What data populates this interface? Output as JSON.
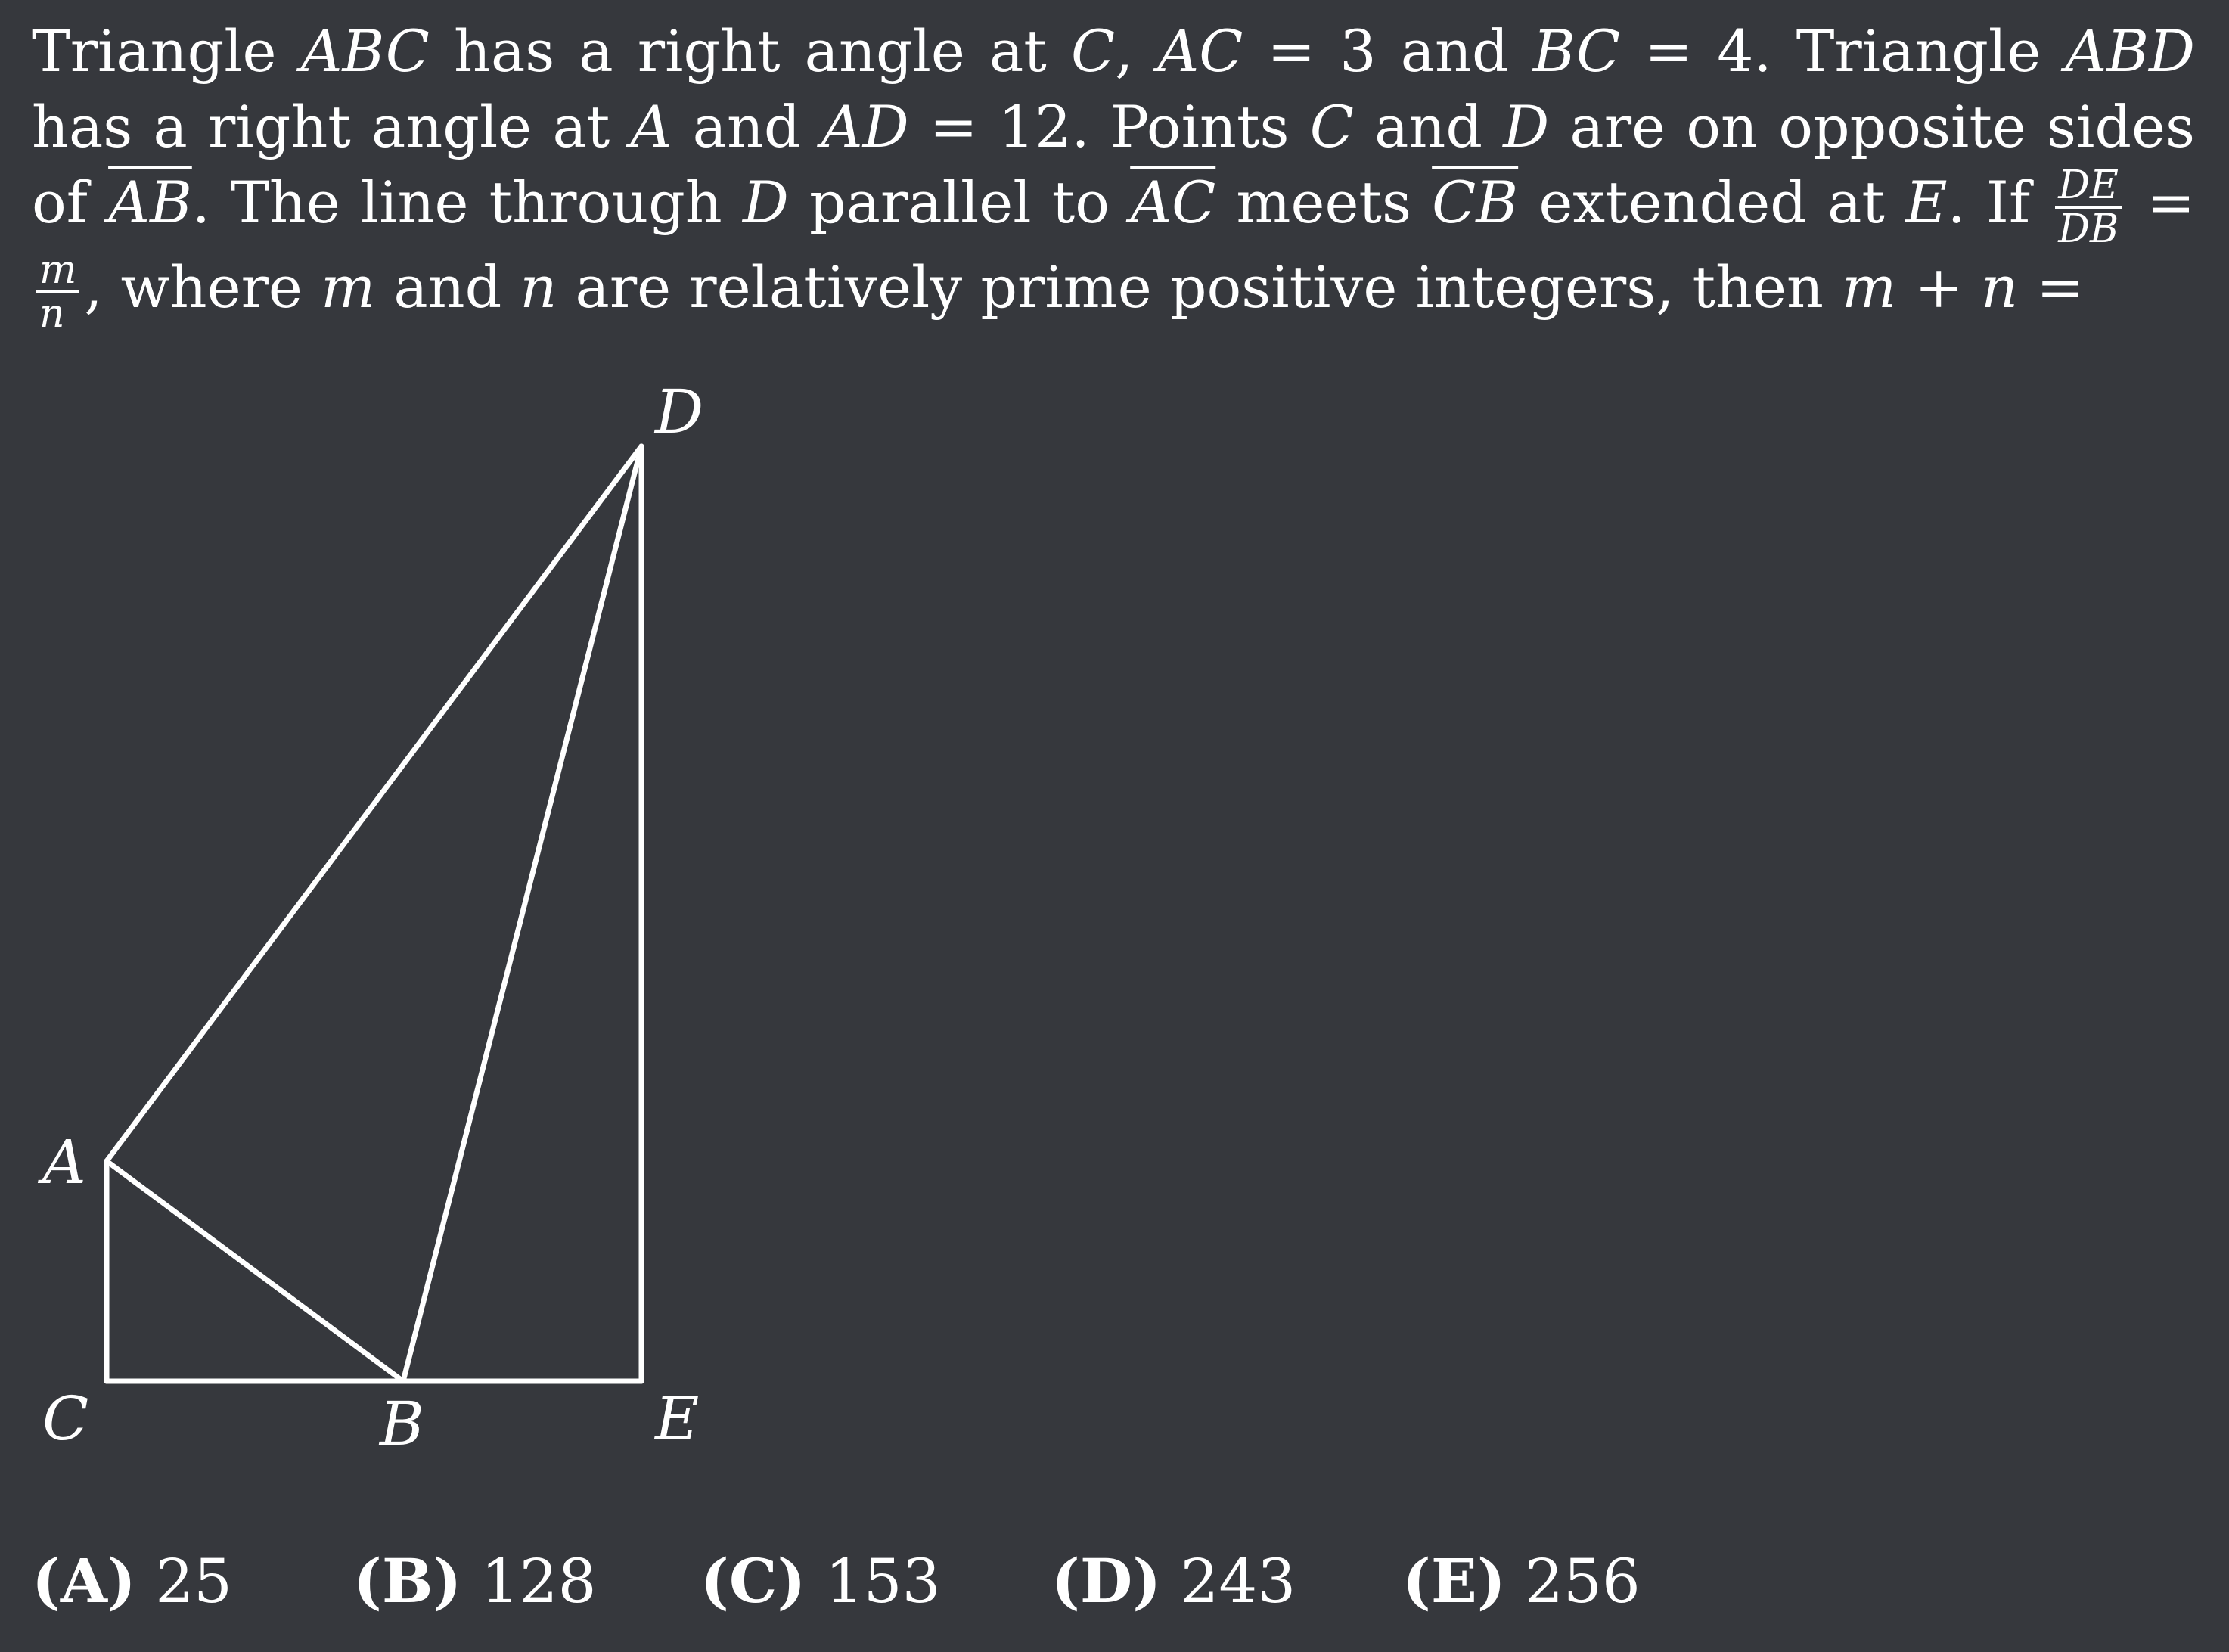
{
  "problem": {
    "t1": "Triangle ",
    "v_abc": "ABC",
    "t2": " has a right angle at ",
    "v_c": "C",
    "t3": ", ",
    "v_ac": "AC",
    "t4": " = 3 and ",
    "v_bc": "BC",
    "t5": " = 4. Triangle ",
    "v_abd": "ABD",
    "t6": " has a right angle at ",
    "v_a": "A",
    "t7": " and ",
    "v_ad": "AD",
    "t8": " = 12. Points ",
    "v_c2": "C",
    "t9": " and ",
    "v_d": "D",
    "t10": " are on opposite sides of ",
    "v_ab_ov": "AB",
    "t11": ". The line through ",
    "v_d2": "D",
    "t12": " parallel to ",
    "v_ac_ov": "AC",
    "t13": " meets ",
    "v_cb_ov": "CB",
    "t14": " extended at ",
    "v_e": "E",
    "t15": ". If ",
    "frac1_num": "DE",
    "frac1_den": "DB",
    "t16": " = ",
    "frac2_num": "m",
    "frac2_den": "n",
    "t17": ", where ",
    "v_m": "m",
    "t18": " and ",
    "v_n": "n",
    "t19": " are relatively prime positive integers, then ",
    "v_mn": "m + n",
    "t20": " ="
  },
  "figure": {
    "labels": {
      "A": "A",
      "B": "B",
      "C": "C",
      "D": "D",
      "E": "E"
    },
    "line_color": "#ffffff",
    "background_color": "#36383d"
  },
  "choices": [
    {
      "letter": "(A)",
      "value": "25"
    },
    {
      "letter": "(B)",
      "value": "128"
    },
    {
      "letter": "(C)",
      "value": "153"
    },
    {
      "letter": "(D)",
      "value": "243"
    },
    {
      "letter": "(E)",
      "value": "256"
    }
  ]
}
